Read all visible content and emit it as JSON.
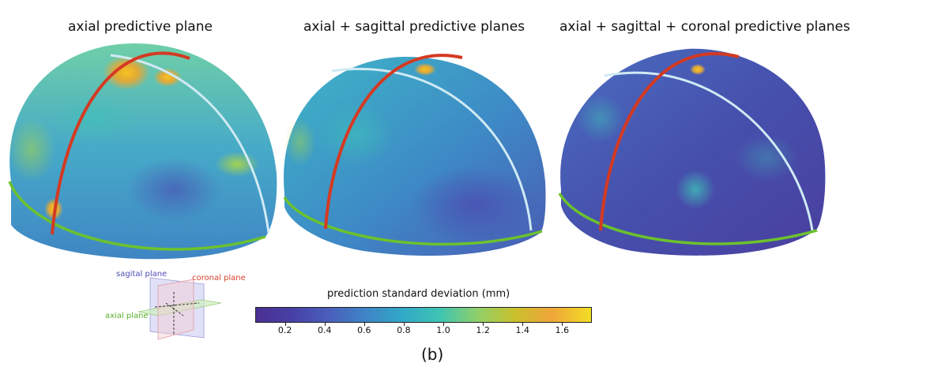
{
  "panels": [
    {
      "title": "axial predictive plane"
    },
    {
      "title": "axial + sagittal predictive planes"
    },
    {
      "title": "axial + sagittal + coronal predictive planes"
    }
  ],
  "legend": {
    "sagital": "sagital plane",
    "coronal": "coronal plane",
    "axial": "axial plane"
  },
  "colorbar": {
    "title": "prediction standard deviation (mm)",
    "min": 0.05,
    "max": 1.75,
    "ticks": [
      "0.2",
      "0.4",
      "0.6",
      "0.8",
      "1.0",
      "1.2",
      "1.4",
      "1.6"
    ],
    "tick_values": [
      0.2,
      0.4,
      0.6,
      0.8,
      1.0,
      1.2,
      1.4,
      1.6
    ],
    "colors": [
      "#4a2f92",
      "#4740a6",
      "#4a5fbb",
      "#3e85c6",
      "#31a9c7",
      "#3fc4b2",
      "#8fcf6a",
      "#c9c02c",
      "#f0a53a",
      "#f2df24"
    ]
  },
  "plane_colors": {
    "sagital": "#4b4bb5",
    "coronal": "#d63f2a",
    "axial": "#59b02a"
  },
  "caption": "(b)"
}
